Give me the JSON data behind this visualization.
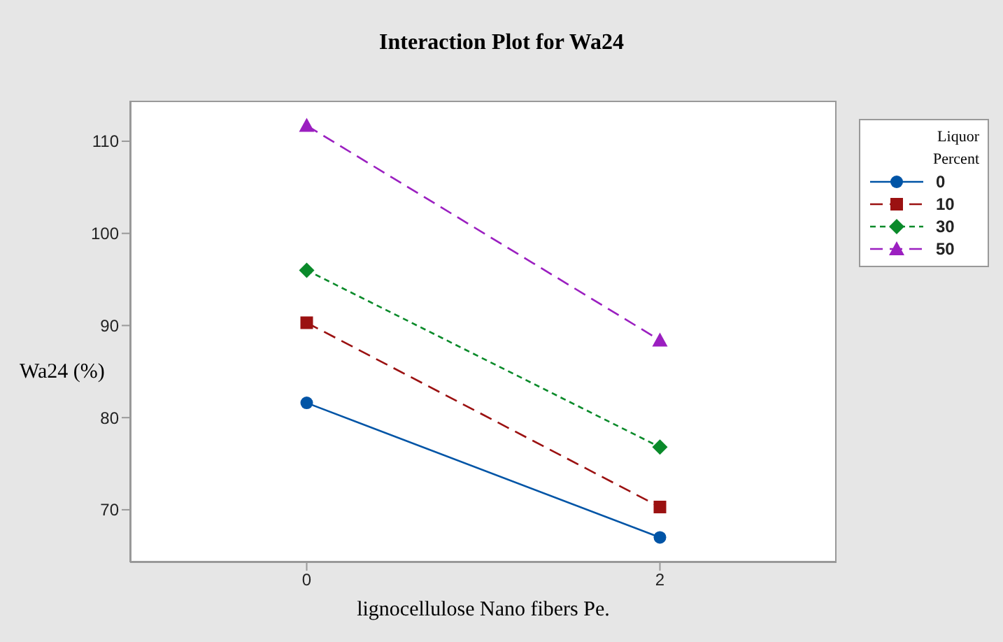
{
  "chart_data": {
    "type": "line",
    "title": "Interaction Plot for Wa24",
    "xlabel": "lignocellulose Nano fibers  Pe.",
    "ylabel": "Wa24 (%)",
    "legend_title": "Liquor Percent",
    "legend": "top right",
    "x": [
      0,
      2
    ],
    "xlim": [
      -1,
      3
    ],
    "xticks": [
      0,
      2
    ],
    "ylim": [
      64.3,
      114.4
    ],
    "yticks": [
      70,
      80,
      90,
      100,
      110
    ],
    "series": [
      {
        "name": "0",
        "color": "#0054a6",
        "values": [
          81.6,
          67.0
        ],
        "marker": "circle",
        "line_style": "solid"
      },
      {
        "name": "10",
        "color": "#9b1111",
        "values": [
          90.3,
          70.3
        ],
        "marker": "square",
        "line_style": "dashed"
      },
      {
        "name": "30",
        "color": "#0a8a2a",
        "values": [
          96.0,
          76.8
        ],
        "marker": "diamond",
        "line_style": "dotted"
      },
      {
        "name": "50",
        "color": "#9b1fc0",
        "values": [
          111.7,
          88.4
        ],
        "marker": "triangle",
        "line_style": "dashed"
      }
    ]
  }
}
